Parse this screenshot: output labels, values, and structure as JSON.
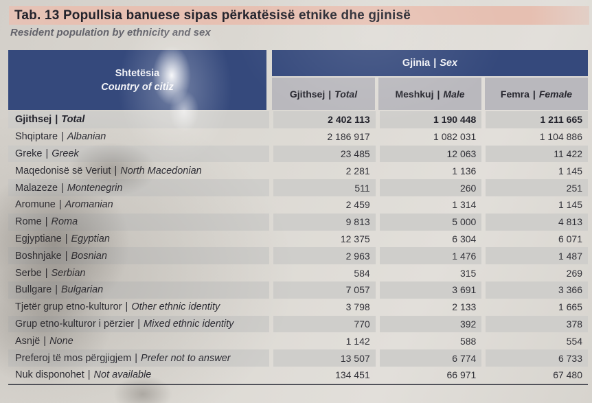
{
  "title": {
    "albanian": "Tab. 13 Popullsia banuese sipas përkatësisë etnike dhe gjinisë",
    "english": "Resident population by ethnicity and sex"
  },
  "table": {
    "separator": "|",
    "row_header": {
      "albanian": "Shtetësia",
      "english": "Country of citiz"
    },
    "group_header": {
      "albanian": "Gjinia",
      "english": "Sex"
    },
    "columns": [
      {
        "albanian": "Gjithsej",
        "english": "Total"
      },
      {
        "albanian": "Meshkuj",
        "english": "Male"
      },
      {
        "albanian": "Femra",
        "english": "Female"
      }
    ],
    "rows": [
      {
        "albanian": "Gjithsej",
        "english": "Total",
        "total": "2 402 113",
        "male": "1 190 448",
        "female": "1 211 665",
        "bold": true
      },
      {
        "albanian": "Shqiptare",
        "english": "Albanian",
        "total": "2 186 917",
        "male": "1 082 031",
        "female": "1 104 886"
      },
      {
        "albanian": "Greke",
        "english": "Greek",
        "total": "23 485",
        "male": "12 063",
        "female": "11 422"
      },
      {
        "albanian": "Maqedonisë së Veriut",
        "english": "North Macedonian",
        "total": "2 281",
        "male": "1 136",
        "female": "1 145"
      },
      {
        "albanian": "Malazeze",
        "english": "Montenegrin",
        "total": "511",
        "male": "260",
        "female": "251"
      },
      {
        "albanian": "Aromune",
        "english": "Aromanian",
        "total": "2 459",
        "male": "1 314",
        "female": "1 145"
      },
      {
        "albanian": "Rome",
        "english": "Roma",
        "total": "9 813",
        "male": "5 000",
        "female": "4 813"
      },
      {
        "albanian": "Egjyptiane",
        "english": "Egyptian",
        "total": "12 375",
        "male": "6 304",
        "female": "6 071"
      },
      {
        "albanian": "Boshnjake",
        "english": "Bosnian",
        "total": "2 963",
        "male": "1 476",
        "female": "1 487"
      },
      {
        "albanian": "Serbe",
        "english": "Serbian",
        "total": "584",
        "male": "315",
        "female": "269"
      },
      {
        "albanian": "Bullgare",
        "english": "Bulgarian",
        "total": "7 057",
        "male": "3 691",
        "female": "3 366"
      },
      {
        "albanian": "Tjetër grup etno-kulturor",
        "english": "Other ethnic identity",
        "total": "3 798",
        "male": "2 133",
        "female": "1 665"
      },
      {
        "albanian": "Grup etno-kulturor i përzier",
        "english": "Mixed ethnic identity",
        "total": "770",
        "male": "392",
        "female": "378"
      },
      {
        "albanian": "Asnjë",
        "english": "None",
        "total": "1 142",
        "male": "588",
        "female": "554"
      },
      {
        "albanian": "Preferoj të mos përgjigjem",
        "english": "Prefer not to answer",
        "total": "13 507",
        "male": "6 774",
        "female": "6 733"
      },
      {
        "albanian": "Nuk disponohet",
        "english": "Not available",
        "total": "134 451",
        "male": "66 971",
        "female": "67 480"
      }
    ]
  },
  "colors": {
    "header_blue": "#35497c",
    "subheader_gray": "#b9b8bd",
    "row_stripe": "#cfcecb",
    "title_highlight": "#e7c0b2",
    "paper": "#dcd9d3",
    "bottom_border": "#51525a"
  }
}
